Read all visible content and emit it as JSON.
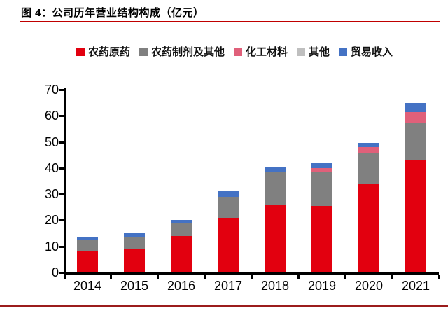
{
  "figure": {
    "title": "图 4：公司历年营业结构构成（亿元）",
    "accent_line_color": "#C00000",
    "bottom_line_color": "#9B1C1C"
  },
  "chart_data": {
    "type": "bar",
    "stacked": true,
    "title": "公司历年营业结构构成",
    "unit": "亿元",
    "categories": [
      "2014",
      "2015",
      "2016",
      "2017",
      "2018",
      "2019",
      "2020",
      "2021"
    ],
    "series": [
      {
        "name": "农药原药",
        "color": "#E2000F",
        "values": [
          8,
          9,
          14,
          21,
          26,
          25.5,
          34,
          43
        ]
      },
      {
        "name": "农药制剂及其他",
        "color": "#808080",
        "values": [
          4.5,
          4.5,
          5,
          8,
          12.5,
          13,
          11.5,
          14
        ]
      },
      {
        "name": "化工材料",
        "color": "#E0607A",
        "values": [
          0,
          0,
          0,
          0,
          0,
          1.5,
          2.5,
          4.5
        ]
      },
      {
        "name": "其他",
        "color": "#BFBFBF",
        "values": [
          0,
          0,
          0,
          0,
          0,
          0,
          0,
          0
        ]
      },
      {
        "name": "贸易收入",
        "color": "#4472C4",
        "values": [
          1,
          1.5,
          1,
          2,
          2,
          2,
          1.5,
          3.5
        ]
      }
    ],
    "totals": [
      13.5,
      15,
      20,
      31,
      40.5,
      42,
      49.5,
      65
    ],
    "ylim": [
      0,
      70
    ],
    "yticks": [
      0,
      10,
      20,
      30,
      40,
      50,
      60,
      70
    ],
    "xlabel": "",
    "ylabel": "",
    "grid": false,
    "legend_position": "top"
  }
}
